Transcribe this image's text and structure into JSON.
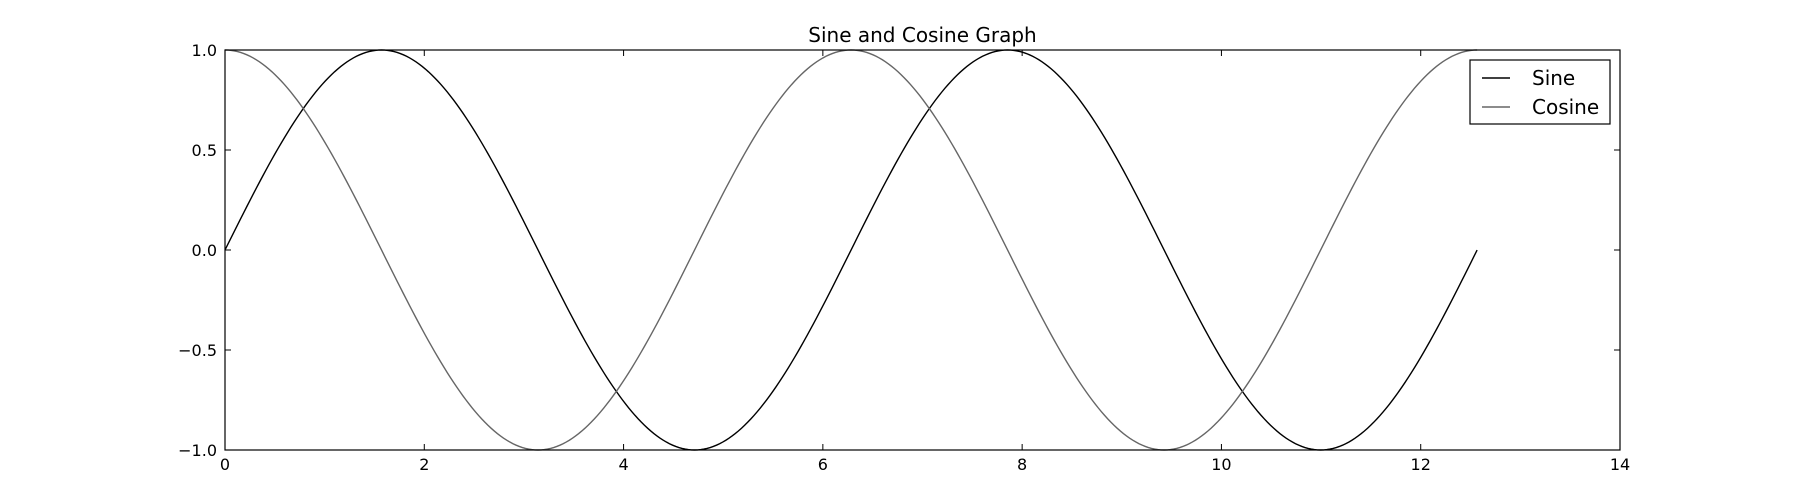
{
  "chart_data": {
    "type": "line",
    "title": "Sine and Cosine Graph",
    "xlabel": "",
    "ylabel": "",
    "xlim": [
      0,
      14
    ],
    "ylim": [
      -1.0,
      1.0
    ],
    "x_ticks": [
      0,
      2,
      4,
      6,
      8,
      10,
      12,
      14
    ],
    "x_tick_labels": [
      "0",
      "2",
      "4",
      "6",
      "8",
      "10",
      "12",
      "14"
    ],
    "y_ticks": [
      -1.0,
      -0.5,
      0.0,
      0.5,
      1.0
    ],
    "y_tick_labels": [
      "−1.0",
      "−0.5",
      "0.0",
      "0.5",
      "1.0"
    ],
    "grid": false,
    "legend_position": "top-right",
    "x_range": [
      0,
      12.566
    ],
    "series": [
      {
        "name": "Sine",
        "function": "sin",
        "color": "#000000"
      },
      {
        "name": "Cosine",
        "function": "cos",
        "color": "#666666"
      }
    ]
  }
}
